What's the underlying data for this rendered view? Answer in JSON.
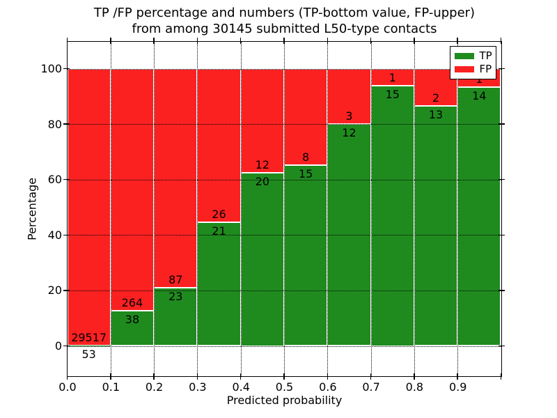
{
  "chart": {
    "title_line1": "TP /FP percentage and numbers (TP-bottom value, FP-upper)",
    "title_line2": "from among 30145 submitted L50-type contacts",
    "xlabel": "Predicted probability",
    "ylabel": "Percentage",
    "legend": {
      "tp_label": "TP",
      "fp_label": "FP"
    }
  },
  "chart_data": {
    "type": "bar",
    "subtype": "stacked_100_percent",
    "title": "TP /FP percentage and numbers (TP-bottom value, FP-upper) from among 30145 submitted L50-type contacts",
    "xlabel": "Predicted probability",
    "ylabel": "Percentage",
    "total_contacts": 30145,
    "bin_width": 0.1,
    "x_bin_start_labels": [
      "0.0",
      "0.1",
      "0.2",
      "0.3",
      "0.4",
      "0.5",
      "0.6",
      "0.7",
      "0.8",
      "0.9"
    ],
    "y_tick_values": [
      0,
      20,
      40,
      60,
      80,
      100
    ],
    "y_tick_labels": [
      "0",
      "20",
      "40",
      "60",
      "80",
      "100"
    ],
    "xlim": [
      0.0,
      1.0
    ],
    "ylim": [
      -11,
      110
    ],
    "grid": true,
    "grid_style": "dotted",
    "legend_position": "upper right",
    "series": [
      {
        "name": "TP",
        "color": "#1f8b1f",
        "counts": [
          53,
          38,
          23,
          21,
          20,
          15,
          12,
          15,
          13,
          14
        ]
      },
      {
        "name": "FP",
        "color": "#fb2121",
        "counts": [
          29517,
          264,
          87,
          26,
          12,
          8,
          3,
          1,
          2,
          1
        ]
      }
    ],
    "tp_percent_by_bin": [
      0.18,
      12.58,
      20.91,
      44.68,
      62.5,
      65.22,
      80.0,
      93.75,
      86.67,
      93.33
    ],
    "bar_edge_color": "#ffffff"
  }
}
